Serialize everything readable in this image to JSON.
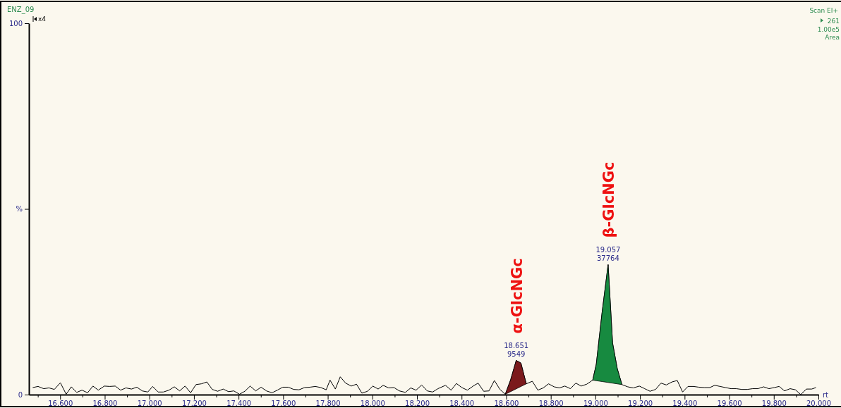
{
  "chart_data": {
    "type": "line",
    "title": "ENZ_09",
    "xlabel": "rt",
    "xlim": [
      16.46,
      20.0
    ],
    "ylim": [
      0,
      100
    ],
    "xticks": [
      {
        "value": 16.5,
        "label": null
      },
      {
        "value": 16.6,
        "label": "16.600"
      },
      {
        "value": 16.7,
        "label": null
      },
      {
        "value": 16.8,
        "label": "16.800"
      },
      {
        "value": 16.9,
        "label": null
      },
      {
        "value": 17.0,
        "label": "17.000"
      },
      {
        "value": 17.1,
        "label": null
      },
      {
        "value": 17.2,
        "label": "17.200"
      },
      {
        "value": 17.3,
        "label": null
      },
      {
        "value": 17.4,
        "label": "17.400"
      },
      {
        "value": 17.5,
        "label": null
      },
      {
        "value": 17.6,
        "label": "17.600"
      },
      {
        "value": 17.7,
        "label": null
      },
      {
        "value": 17.8,
        "label": "17.800"
      },
      {
        "value": 17.9,
        "label": null
      },
      {
        "value": 18.0,
        "label": "18.000"
      },
      {
        "value": 18.1,
        "label": null
      },
      {
        "value": 18.2,
        "label": "18.200"
      },
      {
        "value": 18.3,
        "label": null
      },
      {
        "value": 18.4,
        "label": "18.400"
      },
      {
        "value": 18.5,
        "label": null
      },
      {
        "value": 18.6,
        "label": "18.600"
      },
      {
        "value": 18.7,
        "label": null
      },
      {
        "value": 18.8,
        "label": "18.800"
      },
      {
        "value": 18.9,
        "label": null
      },
      {
        "value": 19.0,
        "label": "19.000"
      },
      {
        "value": 19.1,
        "label": null
      },
      {
        "value": 19.2,
        "label": "19.200"
      },
      {
        "value": 19.3,
        "label": null
      },
      {
        "value": 19.4,
        "label": "19.400"
      },
      {
        "value": 19.5,
        "label": null
      },
      {
        "value": 19.6,
        "label": "19.600"
      },
      {
        "value": 19.7,
        "label": null
      },
      {
        "value": 19.8,
        "label": "19.800"
      },
      {
        "value": 19.9,
        "label": null
      },
      {
        "value": 20.0,
        "label": "20.000"
      }
    ],
    "yticks": [
      0,
      {
        "value": 50,
        "label": "%"
      },
      100
    ],
    "annotations": [
      "x4",
      "Scan EI+",
      "261",
      "1.00e5",
      "Area",
      {
        "text": "18.651\n9549",
        "x": 18.645,
        "y": 9.2
      },
      {
        "text": "19.057\n37764",
        "x": 19.057,
        "y": 35
      }
    ],
    "series": [
      {
        "color": "#000000",
        "x": [
          16.477,
          16.501,
          16.526,
          16.55,
          16.574,
          16.601,
          16.627,
          16.65,
          16.674,
          16.698,
          16.723,
          16.747,
          16.771,
          16.798,
          16.822,
          16.847,
          16.871,
          16.895,
          16.92,
          16.944,
          16.968,
          16.993,
          17.015,
          17.039,
          17.063,
          17.088,
          17.112,
          17.136,
          17.16,
          17.185,
          17.209,
          17.233,
          17.258,
          17.282,
          17.306,
          17.331,
          17.355,
          17.379,
          17.404,
          17.428,
          17.452,
          17.477,
          17.501,
          17.525,
          17.55,
          17.574,
          17.598,
          17.623,
          17.647,
          17.671,
          17.696,
          17.72,
          17.744,
          17.769,
          17.793,
          17.81,
          17.834,
          17.856,
          17.88,
          17.905,
          17.929,
          17.953,
          17.978,
          18.002,
          18.026,
          18.048,
          18.073,
          18.097,
          18.121,
          18.148,
          18.172,
          18.196,
          18.221,
          18.246,
          18.27,
          18.294,
          18.328,
          18.353,
          18.377,
          18.401,
          18.426,
          18.452,
          18.474,
          18.499,
          18.523,
          18.547,
          18.572,
          18.596,
          18.62,
          18.645,
          18.666,
          18.69,
          18.717,
          18.742,
          18.766,
          18.79,
          18.815,
          18.839,
          18.863,
          18.888,
          18.912,
          18.936,
          18.961,
          18.988,
          19.004,
          19.03,
          19.057,
          19.077,
          19.098,
          19.119,
          19.145,
          19.17,
          19.197,
          19.221,
          19.245,
          19.27,
          19.294,
          19.318,
          19.343,
          19.367,
          19.391,
          19.415,
          19.44,
          19.464,
          19.488,
          19.513,
          19.535,
          19.559,
          19.583,
          19.608,
          19.632,
          19.656,
          19.681,
          19.705,
          19.729,
          19.754,
          19.778,
          19.802,
          19.824,
          19.848,
          19.873,
          19.897,
          19.921,
          19.946,
          19.97,
          19.989
        ],
        "values": [
          1.9,
          2.2,
          1.6,
          1.8,
          1.4,
          3.2,
          0.1,
          2.1,
          0.6,
          1.2,
          0.5,
          2.3,
          1.2,
          2.3,
          2.2,
          2.3,
          1.2,
          1.8,
          1.5,
          2,
          1,
          0.7,
          2.2,
          0.7,
          0.7,
          1.2,
          2.1,
          1,
          2.3,
          0.5,
          2.7,
          2.9,
          3.4,
          1.4,
          0.9,
          1.5,
          0.8,
          1,
          0.1,
          0.9,
          2.3,
          1,
          2,
          1,
          0.5,
          1.2,
          2,
          2,
          1.4,
          1.3,
          1.9,
          2,
          2.2,
          1.9,
          1.3,
          3.9,
          1.5,
          4.8,
          3.1,
          2.3,
          2.8,
          0.4,
          0.9,
          2.3,
          1.5,
          2.5,
          1.8,
          1.9,
          1,
          0.6,
          1.8,
          1.2,
          2.6,
          1,
          0.7,
          1.6,
          2.5,
          1.2,
          3,
          1.9,
          1.2,
          2.3,
          3.1,
          0.9,
          1,
          3.8,
          1.4,
          0.1,
          4,
          9.2,
          8.5,
          2.9,
          3.6,
          1.2,
          1.8,
          2.9,
          2.1,
          1.8,
          2.3,
          1.6,
          3.1,
          2.3,
          2.8,
          3.9,
          8.2,
          22.1,
          35,
          13.9,
          7,
          2.7,
          2.1,
          1.8,
          2.3,
          1.6,
          0.9,
          1.4,
          3.1,
          2.6,
          3.4,
          3.8,
          0.7,
          2.2,
          2.2,
          2,
          1.9,
          1.9,
          2.5,
          2.2,
          1.9,
          1.6,
          1.6,
          1.4,
          1.4,
          1.6,
          1.6,
          2.1,
          1.6,
          1.9,
          2.2,
          1,
          1.6,
          1.3,
          0,
          1.5,
          1.5,
          1.9
        ]
      },
      {
        "type": "area",
        "name": "α-GlcNGc",
        "color": "#7b1a1c",
        "x": [
          18.596,
          18.62,
          18.645,
          18.666,
          18.69
        ],
        "values": [
          0.1,
          4,
          9.2,
          8.5,
          2.9
        ]
      },
      {
        "type": "area",
        "name": "β-GlcNGc",
        "color": "#178a40",
        "x": [
          18.988,
          19.004,
          19.03,
          19.057,
          19.077,
          19.098,
          19.119
        ],
        "values": [
          3.9,
          8.2,
          22.1,
          35,
          13.9,
          7,
          2.7
        ]
      }
    ]
  }
}
